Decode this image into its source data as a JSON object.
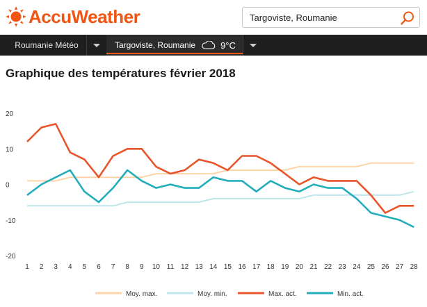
{
  "header": {
    "logo_text": "AccuWeather",
    "search": {
      "value": "Targoviste, Roumanie",
      "icon": "search-icon"
    }
  },
  "nav": {
    "item_country": "Roumanie Météo",
    "item_location": "Targoviste, Roumanie",
    "weather_icon": "cloud-icon",
    "temperature": "9°C"
  },
  "page_title": "Graphique des températures février 2018",
  "colors": {
    "brand": "#f05514",
    "avg_max": "#fdd5a8",
    "avg_min": "#bce6ec",
    "act_max": "#e8552a",
    "act_min": "#22adbb"
  },
  "chart_data": {
    "type": "line",
    "x": [
      1,
      2,
      3,
      4,
      5,
      6,
      7,
      8,
      9,
      10,
      11,
      12,
      13,
      14,
      15,
      16,
      17,
      18,
      19,
      20,
      21,
      22,
      23,
      24,
      25,
      26,
      27,
      28
    ],
    "ylim": [
      -20,
      20
    ],
    "yticks": [
      20,
      10,
      0,
      -10,
      -20
    ],
    "grid": false,
    "legend_position": "bottom",
    "series": [
      {
        "name": "Moy. max.",
        "color": "#fdd5a8",
        "values": [
          1,
          1,
          1,
          2,
          2,
          2,
          2,
          2,
          2,
          3,
          3,
          3,
          3,
          3,
          4,
          4,
          4,
          4,
          4,
          5,
          5,
          5,
          5,
          5,
          6,
          6,
          6,
          6
        ]
      },
      {
        "name": "Moy. min.",
        "color": "#bce6ec",
        "values": [
          -6,
          -6,
          -6,
          -6,
          -6,
          -6,
          -6,
          -5,
          -5,
          -5,
          -5,
          -5,
          -5,
          -4,
          -4,
          -4,
          -4,
          -4,
          -4,
          -4,
          -3,
          -3,
          -3,
          -3,
          -3,
          -3,
          -3,
          -2
        ]
      },
      {
        "name": "Max. act.",
        "color": "#e8552a",
        "values": [
          12,
          16,
          17,
          9,
          7,
          2,
          8,
          10,
          10,
          5,
          3,
          4,
          7,
          6,
          4,
          8,
          8,
          6,
          3,
          0,
          2,
          1,
          1,
          1,
          -3,
          -8,
          -6,
          -6
        ]
      },
      {
        "name": "Min. act.",
        "color": "#22adbb",
        "values": [
          -3,
          0,
          2,
          4,
          -2,
          -5,
          -1,
          4,
          1,
          -1,
          0,
          -1,
          -1,
          2,
          1,
          1,
          -2,
          1,
          -1,
          -2,
          0,
          -1,
          -1,
          -4,
          -8,
          -9,
          -10,
          -12
        ]
      }
    ]
  }
}
